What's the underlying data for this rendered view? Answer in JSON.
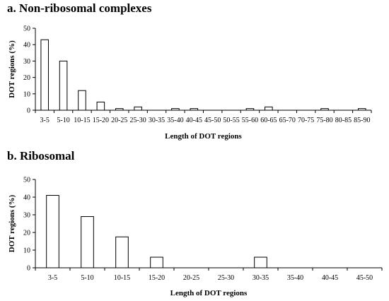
{
  "chart_data": [
    {
      "type": "bar",
      "title": "a. Non-ribosomal complexes",
      "xlabel": "Length of DOT regions",
      "ylabel": "DOT regions (%)",
      "ylim": [
        0,
        50
      ],
      "yticks": [
        0,
        10,
        20,
        30,
        40,
        50
      ],
      "grid": false,
      "legend": "none",
      "bar_color": "#ffffff",
      "edge_color": "#000000",
      "categories": [
        "3-5",
        "5-10",
        "10-15",
        "15-20",
        "20-25",
        "25-30",
        "30-35",
        "35-40",
        "40-45",
        "45-50",
        "50-55",
        "55-60",
        "60-65",
        "65-70",
        "70-75",
        "75-80",
        "80-85",
        "85-90"
      ],
      "values": [
        43,
        30,
        12,
        5,
        1,
        2,
        0,
        1,
        1,
        0,
        0,
        1,
        2,
        0,
        0,
        1,
        0,
        1
      ]
    },
    {
      "type": "bar",
      "title": "b. Ribosomal",
      "xlabel": "Length of DOT regions",
      "ylabel": "DOT regions (%)",
      "ylim": [
        0,
        50
      ],
      "yticks": [
        0,
        10,
        20,
        30,
        40,
        50
      ],
      "grid": false,
      "legend": "none",
      "bar_color": "#ffffff",
      "edge_color": "#000000",
      "categories": [
        "3-5",
        "5-10",
        "10-15",
        "15-20",
        "20-25",
        "25-30",
        "30-35",
        "35-40",
        "40-45",
        "45-50"
      ],
      "values": [
        41,
        29,
        17.5,
        6,
        0,
        0,
        6,
        0,
        0,
        0
      ]
    }
  ]
}
